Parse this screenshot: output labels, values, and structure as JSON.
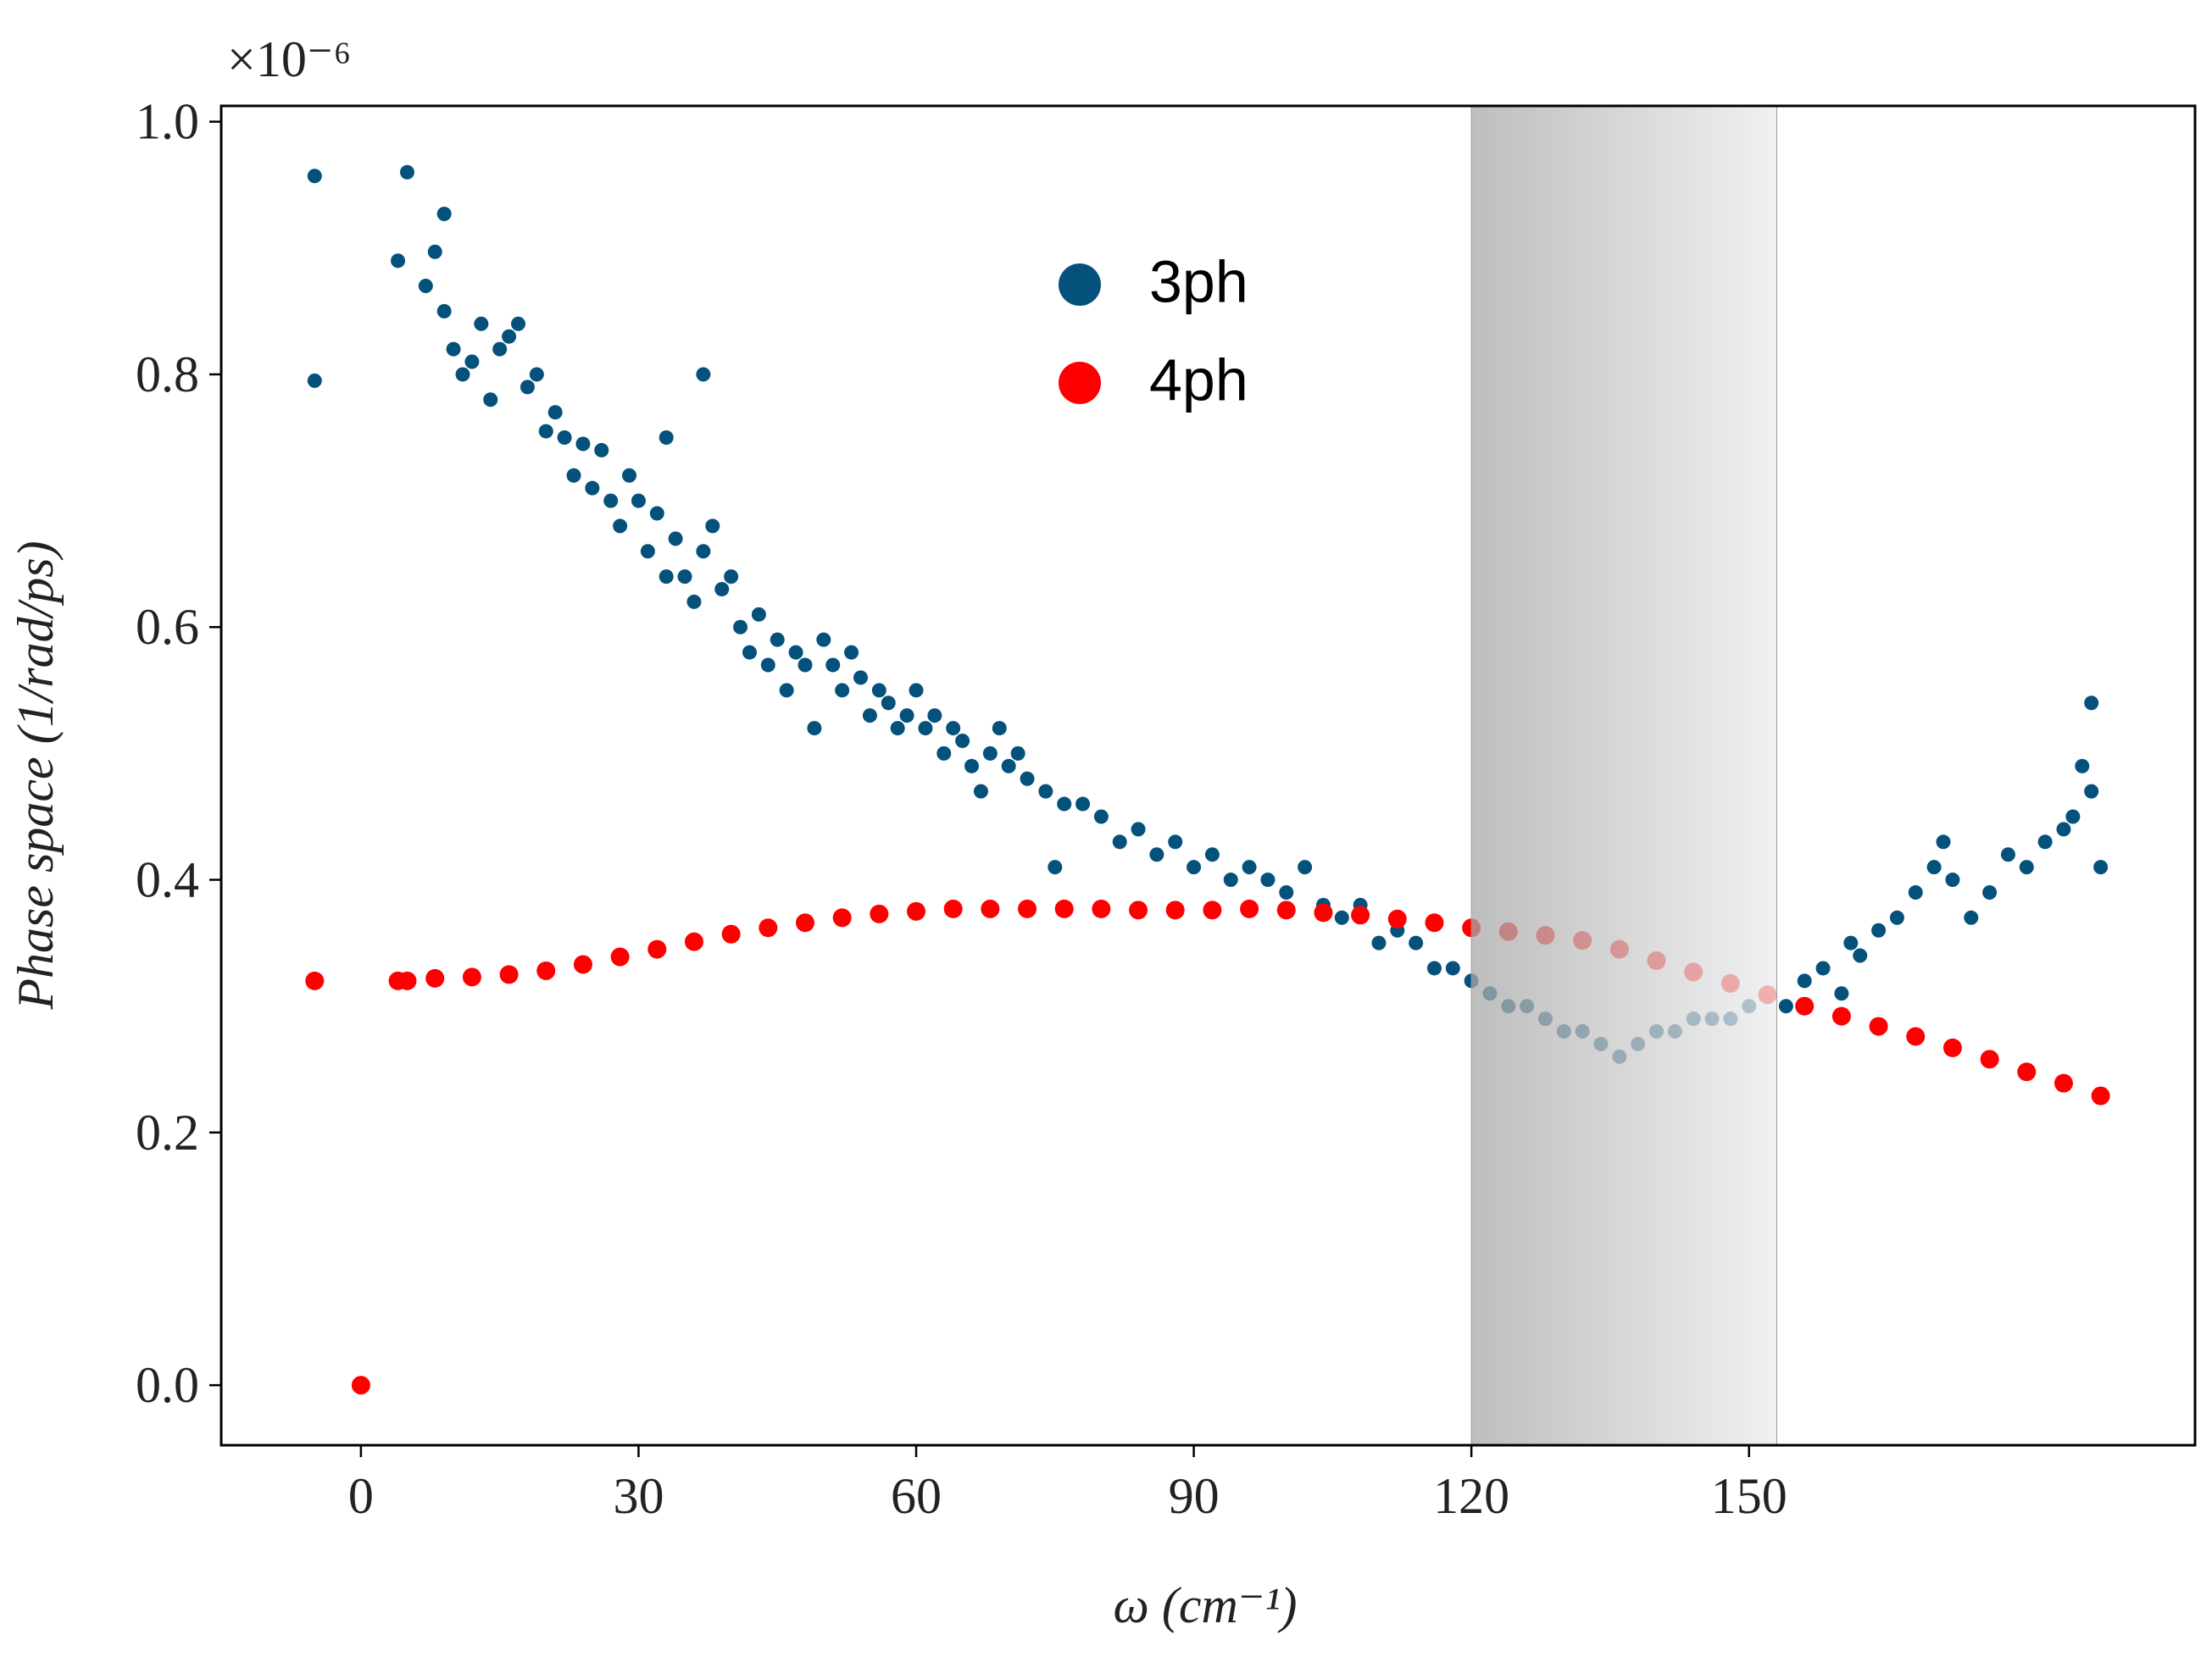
{
  "chart_data": {
    "type": "scatter",
    "annotation": "×10⁻⁶",
    "x_label": "ω (cm⁻¹)",
    "y_label": "Phase space (1/rad/ps)",
    "xlim": [
      -15.1,
      198.2
    ],
    "ylim": [
      -0.0475,
      1.0125
    ],
    "xticks": [
      0,
      30,
      60,
      90,
      120,
      150
    ],
    "yticks": [
      {
        "value": 0,
        "label": "0.0"
      },
      0.2,
      0.4,
      0.6,
      0.8,
      {
        "value": 1,
        "label": "1.0"
      }
    ],
    "shaded_span": [
      120,
      153
    ],
    "series": [
      {
        "name": "3ph",
        "color": "#04517c",
        "x": [
          -5,
          -5,
          4,
          5,
          7,
          8,
          9,
          9,
          10,
          11,
          12,
          13,
          14,
          15,
          16,
          17,
          18,
          19,
          20,
          21,
          22,
          23,
          24,
          25,
          26,
          27,
          28,
          29,
          30,
          31,
          32,
          33,
          33,
          34,
          35,
          36,
          37,
          37,
          38,
          39,
          40,
          41,
          42,
          43,
          44,
          45,
          46,
          47,
          48,
          49,
          50,
          51,
          52,
          53,
          54,
          55,
          56,
          57,
          58,
          59,
          60,
          61,
          62,
          63,
          64,
          65,
          66,
          67,
          68,
          69,
          70,
          71,
          72,
          74,
          75,
          76,
          78,
          80,
          82,
          84,
          86,
          88,
          90,
          92,
          94,
          96,
          98,
          100,
          102,
          104,
          106,
          108,
          110,
          112,
          114,
          116,
          118,
          120,
          122,
          124,
          126,
          128,
          130,
          132,
          134,
          136,
          138,
          140,
          142,
          144,
          146,
          148,
          150,
          152,
          154,
          156,
          158,
          160,
          161,
          162,
          164,
          166,
          168,
          170,
          171,
          172,
          174,
          176,
          178,
          180,
          182,
          184,
          185,
          186,
          187,
          187,
          188
        ],
        "values": [
          0.957,
          0.795,
          0.89,
          0.96,
          0.87,
          0.897,
          0.927,
          0.85,
          0.82,
          0.8,
          0.81,
          0.84,
          0.78,
          0.82,
          0.83,
          0.84,
          0.79,
          0.8,
          0.755,
          0.77,
          0.75,
          0.72,
          0.745,
          0.71,
          0.74,
          0.7,
          0.68,
          0.72,
          0.7,
          0.66,
          0.69,
          0.75,
          0.64,
          0.67,
          0.64,
          0.62,
          0.8,
          0.66,
          0.68,
          0.63,
          0.64,
          0.6,
          0.58,
          0.61,
          0.57,
          0.59,
          0.55,
          0.58,
          0.57,
          0.52,
          0.59,
          0.57,
          0.55,
          0.58,
          0.56,
          0.53,
          0.55,
          0.54,
          0.52,
          0.53,
          0.55,
          0.52,
          0.53,
          0.5,
          0.52,
          0.51,
          0.49,
          0.47,
          0.5,
          0.52,
          0.49,
          0.5,
          0.48,
          0.47,
          0.41,
          0.46,
          0.46,
          0.45,
          0.43,
          0.44,
          0.42,
          0.43,
          0.41,
          0.42,
          0.4,
          0.41,
          0.4,
          0.39,
          0.41,
          0.38,
          0.37,
          0.38,
          0.35,
          0.36,
          0.35,
          0.33,
          0.33,
          0.32,
          0.31,
          0.3,
          0.3,
          0.29,
          0.28,
          0.28,
          0.27,
          0.26,
          0.27,
          0.28,
          0.28,
          0.29,
          0.29,
          0.29,
          0.3,
          0.31,
          0.3,
          0.32,
          0.33,
          0.31,
          0.35,
          0.34,
          0.36,
          0.37,
          0.39,
          0.41,
          0.43,
          0.4,
          0.37,
          0.39,
          0.42,
          0.41,
          0.43,
          0.44,
          0.45,
          0.49,
          0.54,
          0.47,
          0.41
        ]
      },
      {
        "name": "4ph",
        "color": "#ff0000",
        "x": [
          -5,
          0,
          4,
          5,
          8,
          12,
          16,
          20,
          24,
          28,
          32,
          36,
          40,
          44,
          48,
          52,
          56,
          60,
          64,
          68,
          72,
          76,
          80,
          84,
          88,
          92,
          96,
          100,
          104,
          108,
          112,
          116,
          120,
          124,
          128,
          132,
          136,
          140,
          144,
          148,
          152,
          156,
          160,
          164,
          168,
          172,
          176,
          180,
          184,
          188
        ],
        "values": [
          0.32,
          0,
          0.32,
          0.32,
          0.322,
          0.323,
          0.325,
          0.328,
          0.333,
          0.339,
          0.345,
          0.351,
          0.357,
          0.362,
          0.366,
          0.37,
          0.373,
          0.375,
          0.377,
          0.377,
          0.377,
          0.377,
          0.377,
          0.376,
          0.376,
          0.376,
          0.377,
          0.376,
          0.374,
          0.372,
          0.369,
          0.366,
          0.362,
          0.359,
          0.356,
          0.352,
          0.345,
          0.336,
          0.327,
          0.318,
          0.309,
          0.3,
          0.292,
          0.284,
          0.276,
          0.267,
          0.258,
          0.248,
          0.239,
          0.229
        ]
      }
    ]
  }
}
